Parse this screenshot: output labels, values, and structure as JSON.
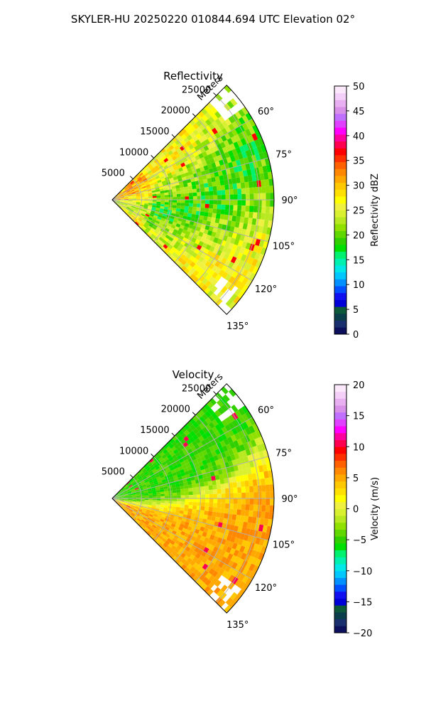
{
  "figure": {
    "suptitle": "SKYLER-HU  20250220  010844.694 UTC Elevation 02°"
  },
  "chart_data": [
    {
      "type": "heatmap",
      "projection": "polar-sector",
      "title": "Reflectivity",
      "radial_axis_label": "Meters",
      "radial_ticks": [
        5000,
        10000,
        15000,
        20000,
        25000
      ],
      "radial_tick_labels": [
        "5000",
        "10000",
        "15000",
        "20000",
        "25000"
      ],
      "rlim": [
        0,
        27500
      ],
      "theta_range_deg": [
        45,
        135
      ],
      "theta_ticks_deg": [
        60,
        75,
        90,
        105,
        120,
        135
      ],
      "theta_tick_labels": [
        "60°",
        "75°",
        "90°",
        "105°",
        "120°",
        "135°"
      ],
      "grid": true,
      "colorbar": {
        "label": "Reflectivity dBZ",
        "range": [
          0,
          50
        ],
        "ticks": [
          0,
          5,
          10,
          15,
          20,
          25,
          30,
          35,
          40,
          45,
          50
        ],
        "tick_labels": [
          "0",
          "5",
          "10",
          "15",
          "20",
          "25",
          "30",
          "35",
          "40",
          "45",
          "50"
        ],
        "colors": [
          "#0b0f5c",
          "#1a2f6e",
          "#0a3e4a",
          "#0c5a3a",
          "#0000d8",
          "#1010f0",
          "#0050ff",
          "#0090ff",
          "#00c8ff",
          "#00e8e8",
          "#00f0b0",
          "#00f070",
          "#00e000",
          "#30d000",
          "#60d800",
          "#90e000",
          "#b8e820",
          "#d8f030",
          "#f0f040",
          "#ffff00",
          "#ffe000",
          "#ffc800",
          "#ffa800",
          "#ff8800",
          "#ff6000",
          "#ff3000",
          "#ff0000",
          "#ff0050",
          "#ff00a0",
          "#ff00ff",
          "#e040ff",
          "#c070ff",
          "#d890e8",
          "#e8b0f0",
          "#f4d0f8",
          "#fbe8fb"
        ]
      },
      "field_summary": "Mostly 20–30 dBZ; isolated cores near 35–40 dBZ",
      "field_levels": [
        22,
        24,
        26,
        28
      ]
    },
    {
      "type": "heatmap",
      "projection": "polar-sector",
      "title": "Velocity",
      "radial_axis_label": "Meters",
      "radial_ticks": [
        5000,
        10000,
        15000,
        20000,
        25000
      ],
      "radial_tick_labels": [
        "5000",
        "10000",
        "15000",
        "20000",
        "25000"
      ],
      "rlim": [
        0,
        27500
      ],
      "theta_range_deg": [
        45,
        135
      ],
      "theta_ticks_deg": [
        60,
        75,
        90,
        105,
        120,
        135
      ],
      "theta_tick_labels": [
        "60°",
        "75°",
        "90°",
        "105°",
        "120°",
        "135°"
      ],
      "grid": true,
      "colorbar": {
        "label": "Velocity (m/s)",
        "range": [
          -20,
          20
        ],
        "ticks": [
          -20,
          -15,
          -10,
          -5,
          0,
          5,
          10,
          15,
          20
        ],
        "tick_labels": [
          "−20",
          "−15",
          "−10",
          "−5",
          "0",
          "5",
          "10",
          "15",
          "20"
        ],
        "colors": [
          "#0b0f5c",
          "#1a2f6e",
          "#0a3e4a",
          "#0c5a3a",
          "#0000d8",
          "#1010f0",
          "#0050ff",
          "#0090ff",
          "#00c8ff",
          "#00e8e8",
          "#00f0b0",
          "#00f070",
          "#00e000",
          "#30d000",
          "#60d800",
          "#90e000",
          "#b8e820",
          "#d8f030",
          "#f0f040",
          "#ffff00",
          "#ffe000",
          "#ffc800",
          "#ffa800",
          "#ff8800",
          "#ff6000",
          "#ff3000",
          "#ff0000",
          "#ff0050",
          "#ff00a0",
          "#ff00ff",
          "#e040ff",
          "#c070ff",
          "#d890e8",
          "#e8b0f0",
          "#f4d0f8",
          "#fbe8fb"
        ]
      },
      "field_summary": "Near-radar and northern sector about −3 to −5 m/s; southern and far-range sector about +2 to +6 m/s",
      "field_levels": [
        -4,
        -2,
        2,
        5
      ]
    }
  ]
}
